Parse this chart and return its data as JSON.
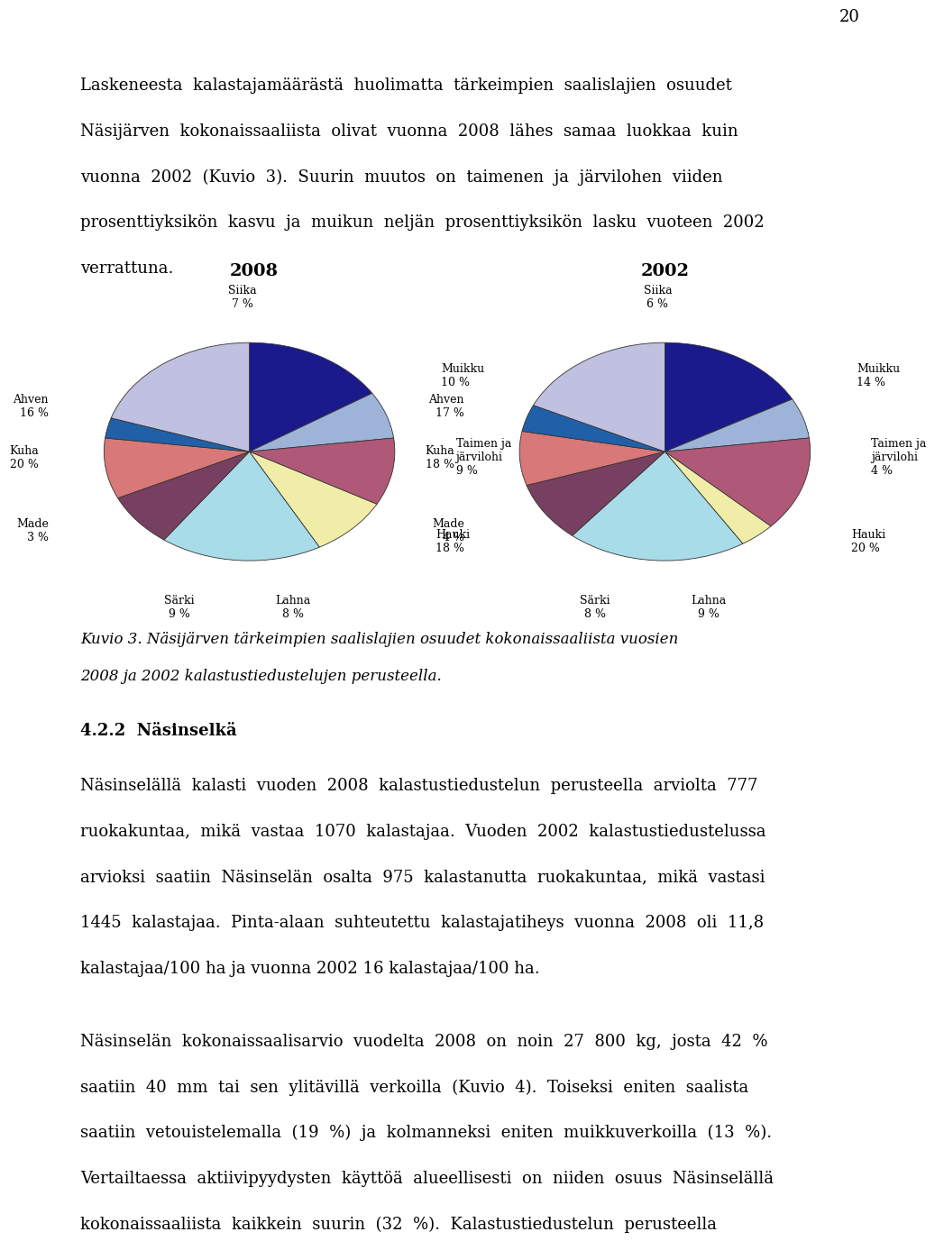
{
  "title_2008": "2008",
  "title_2002": "2002",
  "page_number": "20",
  "background_color": "#FFFFFF",
  "text_color": "#000000",
  "font_size_body": 13,
  "font_size_pie_label": 9,
  "pie_2008": {
    "labels": [
      "Ahven",
      "Siika",
      "Muikku",
      "Taimen ja\njärvilohi",
      "Hauki",
      "Lahna",
      "Särki",
      "Made",
      "Kuha"
    ],
    "values": [
      16,
      7,
      10,
      9,
      18,
      8,
      9,
      3,
      20
    ],
    "colors": [
      "#1A1A8C",
      "#9DB4D8",
      "#B05878",
      "#F0EDA8",
      "#A8DCE8",
      "#784060",
      "#D87878",
      "#2060A8",
      "#C0C0E0"
    ]
  },
  "pie_2002": {
    "labels": [
      "Ahven",
      "Siika",
      "Muikku",
      "Taimen ja\njärvilohi",
      "Hauki",
      "Lahna",
      "Särki",
      "Made",
      "Kuha"
    ],
    "values": [
      17,
      6,
      14,
      4,
      20,
      9,
      8,
      4,
      18
    ],
    "colors": [
      "#1A1A8C",
      "#9DB4D8",
      "#B05878",
      "#F0EDA8",
      "#A8DCE8",
      "#784060",
      "#D87878",
      "#2060A8",
      "#C0C0E0"
    ]
  },
  "label_pos_2008": {
    "Ahven": [
      -1.38,
      0.42,
      "right"
    ],
    "Siika": [
      -0.05,
      1.42,
      "center"
    ],
    "Muikku": [
      1.32,
      0.7,
      "left"
    ],
    "Taimen ja\njärvilohi": [
      1.42,
      -0.05,
      "left"
    ],
    "Hauki": [
      1.28,
      -0.82,
      "left"
    ],
    "Lahna": [
      0.3,
      -1.42,
      "center"
    ],
    "Särki": [
      -0.48,
      -1.42,
      "center"
    ],
    "Made": [
      -1.38,
      -0.72,
      "right"
    ],
    "Kuha": [
      -1.45,
      -0.05,
      "right"
    ]
  },
  "label_pos_2002": {
    "Ahven": [
      -1.38,
      0.42,
      "right"
    ],
    "Siika": [
      -0.05,
      1.42,
      "center"
    ],
    "Muikku": [
      1.32,
      0.7,
      "left"
    ],
    "Taimen ja\njärvilohi": [
      1.42,
      -0.05,
      "left"
    ],
    "Hauki": [
      1.28,
      -0.82,
      "left"
    ],
    "Lahna": [
      0.3,
      -1.42,
      "center"
    ],
    "Särki": [
      -0.48,
      -1.42,
      "center"
    ],
    "Made": [
      -1.38,
      -0.72,
      "right"
    ],
    "Kuha": [
      -1.45,
      -0.05,
      "right"
    ]
  },
  "para1_lines": [
    "Laskeneesta  kalastajamäärästä  huolimatta  tärkeimpien  saalislajien  osuudet",
    "Näsijärven  kokonaissaaliista  olivat  vuonna  2008  lähes  samaa  luokkaa  kuin",
    "vuonna  2002  (Kuvio  3).  Suurin  muutos  on  taimenen  ja  järvilohen  viiden",
    "prosenttiyksikön  kasvu  ja  muikun  neljän  prosenttiyksikön  lasku  vuoteen  2002",
    "verrattuna."
  ],
  "caption_lines": [
    "Kuvio 3. Näsijärven tärkeimpien saalislajien osuudet kokonaissaaliista vuosien",
    "2008 ja 2002 kalastustiedustelujen perusteella."
  ],
  "heading": "4.2.2  Näsinselkä",
  "para3_lines": [
    "Näsinselällä  kalasti  vuoden  2008  kalastustiedustelun  perusteella  arviolta  777",
    "ruokakuntaa,  mikä  vastaa  1070  kalastajaa.  Vuoden  2002  kalastustiedustelussa",
    "arvioksi  saatiin  Näsinselän  osalta  975  kalastanutta  ruokakuntaa,  mikä  vastasi",
    "1445  kalastajaa.  Pinta-alaan  suhteutettu  kalastajatiheys  vuonna  2008  oli  11,8",
    "kalastajaa/100 ha ja vuonna 2002 16 kalastajaa/100 ha."
  ],
  "para4_lines": [
    "Näsinselän  kokonaissaalisarvio  vuodelta  2008  on  noin  27  800  kg,  josta  42  %",
    "saatiin  40  mm  tai  sen  ylitävillä  verkoilla  (Kuvio  4).  Toiseksi  eniten  saalista",
    "saatiin  vetouistelemalla  (19  %)  ja  kolmanneksi  eniten  muikkuverkoilla  (13  %).",
    "Vertailtaessa  aktiivipyydysten  käyttöä  alueellisesti  on  niiden  osuus  Näsinselällä",
    "kokonaissaaliista  kaikkein  suurin  (32  %).  Kalastustiedustelun  perusteella"
  ]
}
